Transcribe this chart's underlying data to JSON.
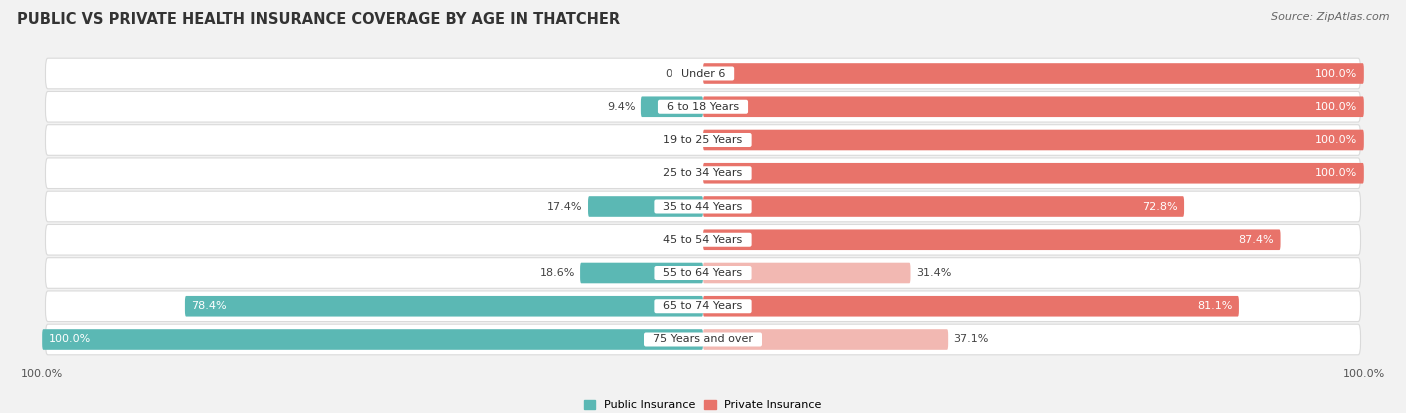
{
  "title": "PUBLIC VS PRIVATE HEALTH INSURANCE COVERAGE BY AGE IN THATCHER",
  "source": "Source: ZipAtlas.com",
  "categories": [
    "Under 6",
    "6 to 18 Years",
    "19 to 25 Years",
    "25 to 34 Years",
    "35 to 44 Years",
    "45 to 54 Years",
    "55 to 64 Years",
    "65 to 74 Years",
    "75 Years and over"
  ],
  "public": [
    0.0,
    9.4,
    0.0,
    0.0,
    17.4,
    0.0,
    18.6,
    78.4,
    100.0
  ],
  "private": [
    100.0,
    100.0,
    100.0,
    100.0,
    72.8,
    87.4,
    31.4,
    81.1,
    37.1
  ],
  "public_color": "#5BB8B4",
  "private_color": "#E8736A",
  "private_light_color": "#F2B8B2",
  "row_bg_color": "#FFFFFF",
  "row_border_color": "#DADADA",
  "background_color": "#F2F2F2",
  "bar_height": 0.62,
  "xlim_left": -100,
  "xlim_right": 100,
  "title_fontsize": 10.5,
  "label_fontsize": 8,
  "tick_fontsize": 8,
  "source_fontsize": 8,
  "cat_label_fontsize": 8
}
